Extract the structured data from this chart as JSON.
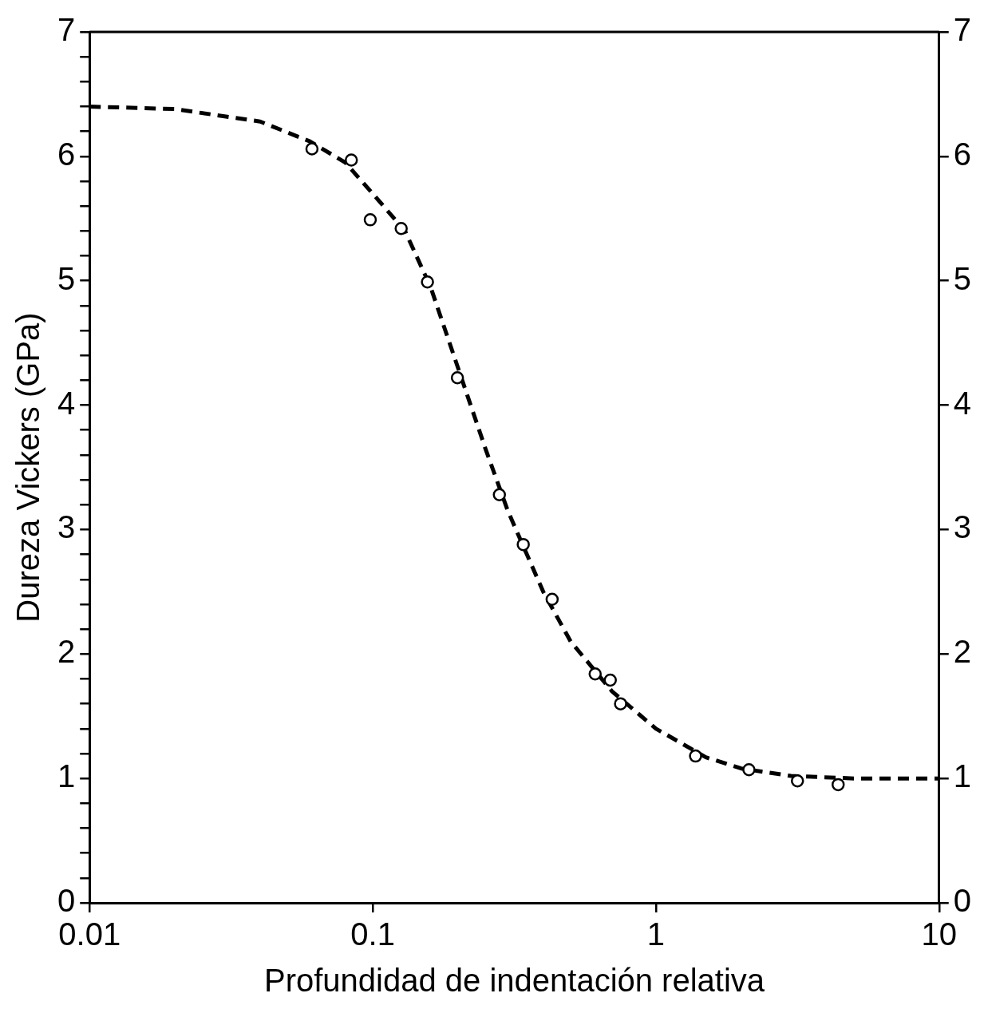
{
  "chart_data": {
    "type": "scatter",
    "xlabel": "Profundidad de indentación relativa",
    "ylabel": "Dureza Vickers (GPa)",
    "log": "x",
    "xlim": [
      0.01,
      10
    ],
    "xticks": [
      0.01,
      0.1,
      1,
      10
    ],
    "ylim": [
      0,
      7
    ],
    "yticks": [
      0,
      {
        "value": 0.2,
        "label": null
      },
      {
        "value": 0.4,
        "label": null
      },
      {
        "value": 0.6,
        "label": null
      },
      {
        "value": 0.8,
        "label": null
      },
      1,
      {
        "value": 1.2,
        "label": null
      },
      {
        "value": 1.4,
        "label": null
      },
      {
        "value": 1.6,
        "label": null
      },
      {
        "value": 1.8,
        "label": null
      },
      2,
      {
        "value": 2.2,
        "label": null
      },
      {
        "value": 2.4,
        "label": null
      },
      {
        "value": 2.6,
        "label": null
      },
      {
        "value": 2.8,
        "label": null
      },
      3,
      {
        "value": 3.2,
        "label": null
      },
      {
        "value": 3.4,
        "label": null
      },
      {
        "value": 3.6,
        "label": null
      },
      {
        "value": 3.8,
        "label": null
      },
      4,
      {
        "value": 4.2,
        "label": null
      },
      {
        "value": 4.4,
        "label": null
      },
      {
        "value": 4.6,
        "label": null
      },
      {
        "value": 4.8,
        "label": null
      },
      5,
      {
        "value": 5.2,
        "label": null
      },
      {
        "value": 5.4,
        "label": null
      },
      {
        "value": 5.6,
        "label": null
      },
      {
        "value": 5.8,
        "label": null
      },
      6,
      {
        "value": 6.2,
        "label": null
      },
      {
        "value": 6.4,
        "label": null
      },
      {
        "value": 6.6,
        "label": null
      },
      {
        "value": 6.8,
        "label": null
      },
      7
    ],
    "y2lim": [
      0,
      7
    ],
    "y2ticks": [
      0,
      1,
      2,
      3,
      4,
      5,
      6,
      7
    ],
    "grid": false,
    "legend": false,
    "series": [
      {
        "color": "#000000",
        "marker": "circle",
        "x": [
          0.061,
          0.084,
          0.098,
          0.126,
          0.156,
          0.199,
          0.28,
          0.34,
          0.43,
          0.61,
          0.69,
          0.75,
          1.38,
          2.13,
          3.16,
          4.4
        ],
        "values": [
          6.06,
          5.97,
          5.49,
          5.42,
          4.99,
          4.22,
          3.28,
          2.88,
          2.44,
          1.84,
          1.79,
          1.6,
          1.18,
          1.07,
          0.98,
          0.95
        ]
      },
      {
        "type": "line",
        "color": "#000000",
        "marker": "none",
        "line_style": "dashed",
        "x": [
          0.01,
          0.02,
          0.04,
          0.06,
          0.08,
          0.1,
          0.13,
          0.16,
          0.2,
          0.25,
          0.3,
          0.4,
          0.5,
          0.7,
          1,
          1.5,
          2,
          3,
          5,
          10
        ],
        "values": [
          6.4,
          6.38,
          6.28,
          6.12,
          5.95,
          5.7,
          5.4,
          4.95,
          4.3,
          3.65,
          3.15,
          2.5,
          2.1,
          1.7,
          1.4,
          1.17,
          1.08,
          1.02,
          1.0,
          1.0
        ]
      }
    ]
  }
}
